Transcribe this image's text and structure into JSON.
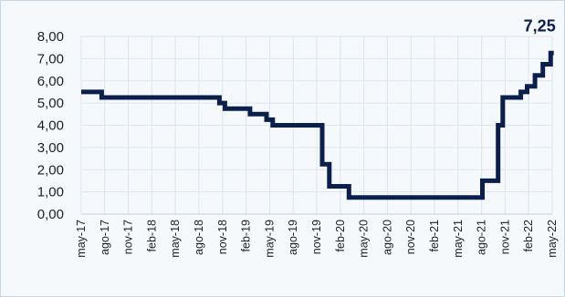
{
  "chart_data": {
    "type": "line",
    "step": true,
    "title": "",
    "xlabel": "",
    "ylabel": "",
    "ylim": [
      0,
      8
    ],
    "y_ticks": [
      "0,00",
      "1,00",
      "2,00",
      "3,00",
      "4,00",
      "5,00",
      "6,00",
      "7,00",
      "8,00"
    ],
    "x_ticks": [
      "may-17",
      "ago-17",
      "nov-17",
      "feb-18",
      "may-18",
      "ago-18",
      "nov-18",
      "feb-19",
      "may-19",
      "ago-19",
      "nov-19",
      "feb-20",
      "may-20",
      "ago-20",
      "nov-20",
      "feb-21",
      "may-21",
      "ago-21",
      "nov-21",
      "feb-22",
      "may-22"
    ],
    "grid": true,
    "line_color": "#0b1f4d",
    "grid_color": "#dde4ee",
    "annotation": {
      "label": "7,25",
      "x": 60.2,
      "y": 7.25
    },
    "series": [
      {
        "values": [
          [
            0,
            5.5
          ],
          [
            2.6,
            5.5
          ],
          [
            2.6,
            5.25
          ],
          [
            17.6,
            5.25
          ],
          [
            17.6,
            5.0
          ],
          [
            18.3,
            5.0
          ],
          [
            18.3,
            4.75
          ],
          [
            21.5,
            4.75
          ],
          [
            21.5,
            4.5
          ],
          [
            23.6,
            4.5
          ],
          [
            23.6,
            4.25
          ],
          [
            24.4,
            4.25
          ],
          [
            24.4,
            4.0
          ],
          [
            30.7,
            4.0
          ],
          [
            30.7,
            2.25
          ],
          [
            31.6,
            2.25
          ],
          [
            31.6,
            1.25
          ],
          [
            34.1,
            1.25
          ],
          [
            34.1,
            0.75
          ],
          [
            51.1,
            0.75
          ],
          [
            51.1,
            1.5
          ],
          [
            53.1,
            1.5
          ],
          [
            53.1,
            4.0
          ],
          [
            53.7,
            4.0
          ],
          [
            53.7,
            5.25
          ],
          [
            56.0,
            5.25
          ],
          [
            56.0,
            5.5
          ],
          [
            56.8,
            5.5
          ],
          [
            56.8,
            5.75
          ],
          [
            57.8,
            5.75
          ],
          [
            57.8,
            6.25
          ],
          [
            58.8,
            6.25
          ],
          [
            58.8,
            6.75
          ],
          [
            59.8,
            6.75
          ],
          [
            59.8,
            7.25
          ],
          [
            60.2,
            7.25
          ]
        ]
      }
    ]
  }
}
